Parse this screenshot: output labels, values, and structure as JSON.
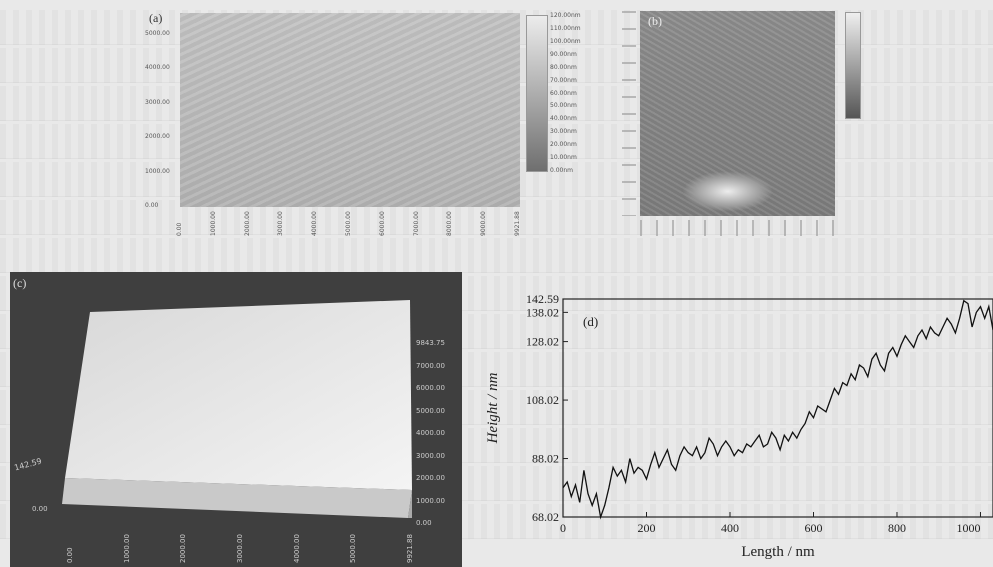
{
  "panel_a": {
    "label": "(a)",
    "y_ticks": [
      "5000.00",
      "4000.00",
      "3000.00",
      "2000.00",
      "1000.00",
      "0.00"
    ],
    "x_ticks": [
      "0.00",
      "1000.00",
      "2000.00",
      "3000.00",
      "4000.00",
      "5000.00",
      "6000.00",
      "7000.00",
      "8000.00",
      "9000.00",
      "9921.88"
    ],
    "colorbar_ticks": [
      "120.00nm",
      "110.00nm",
      "100.00nm",
      "90.00nm",
      "80.00nm",
      "70.00nm",
      "60.00nm",
      "50.00nm",
      "40.00nm",
      "30.00nm",
      "20.00nm",
      "10.00nm",
      "0.00nm"
    ]
  },
  "panel_b": {
    "label": "(b)"
  },
  "panel_c": {
    "label": "(c)",
    "z_ticks": [
      "9843.75",
      "7000.00",
      "6000.00",
      "5000.00",
      "4000.00",
      "3000.00",
      "2000.00",
      "1000.00",
      "0.00"
    ],
    "x_ticks": [
      "0.00",
      "1000.00",
      "2000.00",
      "3000.00",
      "4000.00",
      "5000.00",
      "9921.88"
    ],
    "left_labels": [
      "142.59",
      "0.00"
    ]
  },
  "chart_data": {
    "type": "line",
    "xlabel": "Length / nm",
    "ylabel": "Height / nm",
    "xlim": [
      0,
      1030
    ],
    "ylim": [
      68.02,
      142.59
    ],
    "x_ticks": [
      0,
      200,
      400,
      600,
      800,
      1000
    ],
    "y_ticks": [
      "68.02",
      "88.02",
      "108.02",
      "128.02",
      "138.02",
      "142.59"
    ],
    "y_tick_values": [
      68.02,
      88.02,
      108.02,
      128.02,
      138.02,
      142.59
    ],
    "x": [
      0,
      10,
      20,
      30,
      40,
      50,
      60,
      70,
      80,
      90,
      100,
      110,
      120,
      130,
      140,
      150,
      160,
      170,
      180,
      190,
      200,
      210,
      220,
      230,
      240,
      250,
      260,
      270,
      280,
      290,
      300,
      310,
      320,
      330,
      340,
      350,
      360,
      370,
      380,
      390,
      400,
      410,
      420,
      430,
      440,
      450,
      460,
      470,
      480,
      490,
      500,
      510,
      520,
      530,
      540,
      550,
      560,
      570,
      580,
      590,
      600,
      610,
      620,
      630,
      640,
      650,
      660,
      670,
      680,
      690,
      700,
      710,
      720,
      730,
      740,
      750,
      760,
      770,
      780,
      790,
      800,
      810,
      820,
      830,
      840,
      850,
      860,
      870,
      880,
      890,
      900,
      910,
      920,
      930,
      940,
      950,
      960,
      970,
      980,
      990,
      1000,
      1010,
      1020,
      1030
    ],
    "y": [
      78,
      80,
      75,
      79,
      73,
      84,
      76,
      72,
      76,
      68,
      72,
      78,
      85,
      82,
      84,
      80,
      88,
      83,
      85,
      84,
      81,
      86,
      90,
      85,
      88,
      91,
      86,
      84,
      89,
      92,
      90,
      89,
      92,
      88,
      90,
      95,
      93,
      89,
      92,
      94,
      92,
      89,
      91,
      90,
      93,
      92,
      94,
      96,
      92,
      93,
      97,
      95,
      91,
      96,
      94,
      97,
      95,
      98,
      100,
      104,
      102,
      106,
      105,
      104,
      108,
      112,
      110,
      114,
      113,
      117,
      115,
      120,
      119,
      116,
      122,
      124,
      120,
      118,
      124,
      126,
      123,
      127,
      130,
      128,
      126,
      130,
      132,
      129,
      133,
      131,
      130,
      133,
      136,
      134,
      131,
      136,
      142,
      141,
      133,
      138,
      140,
      136,
      140,
      132
    ]
  }
}
